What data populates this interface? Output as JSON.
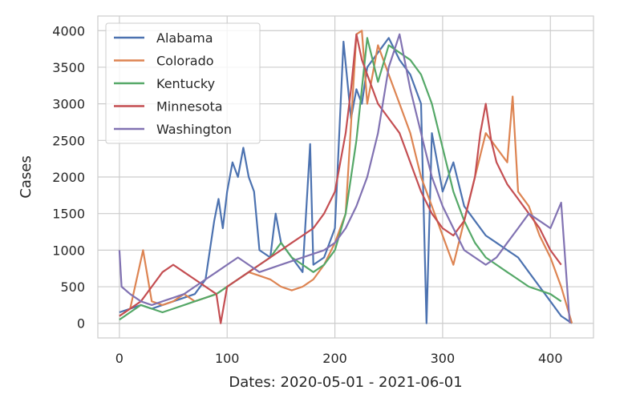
{
  "chart_data": {
    "type": "line",
    "title": "",
    "xlabel": "Dates: 2020-05-01 - 2021-06-01",
    "ylabel": "Cases",
    "xlim": [
      -20,
      440
    ],
    "ylim": [
      -200,
      4200
    ],
    "xticks": [
      0,
      100,
      200,
      300,
      400
    ],
    "yticks": [
      0,
      500,
      1000,
      1500,
      2000,
      2500,
      3000,
      3500,
      4000
    ],
    "grid": true,
    "legend_position": "top-left",
    "series": [
      {
        "name": "Alabama",
        "color": "#4c72b0",
        "x": [
          0,
          10,
          20,
          30,
          40,
          50,
          60,
          70,
          80,
          88,
          92,
          96,
          100,
          105,
          110,
          115,
          120,
          125,
          130,
          140,
          145,
          150,
          160,
          170,
          177,
          180,
          190,
          200,
          208,
          215,
          220,
          225,
          230,
          240,
          250,
          260,
          270,
          280,
          285,
          290,
          300,
          310,
          320,
          330,
          340,
          350,
          360,
          370,
          380,
          390,
          400,
          410,
          420
        ],
        "values": [
          150,
          200,
          250,
          200,
          250,
          300,
          350,
          400,
          600,
          1400,
          1700,
          1300,
          1800,
          2200,
          2000,
          2400,
          2000,
          1800,
          1000,
          900,
          1500,
          1100,
          900,
          700,
          2450,
          800,
          900,
          1300,
          3850,
          2800,
          3200,
          3000,
          3500,
          3700,
          3900,
          3600,
          3400,
          3000,
          0,
          2600,
          1800,
          2200,
          1600,
          1400,
          1200,
          1100,
          1000,
          900,
          700,
          500,
          300,
          100,
          0
        ]
      },
      {
        "name": "Colorado",
        "color": "#dd8452",
        "x": [
          0,
          10,
          22,
          30,
          40,
          50,
          60,
          70,
          80,
          90,
          100,
          110,
          120,
          130,
          140,
          150,
          160,
          170,
          180,
          190,
          200,
          210,
          220,
          225,
          230,
          240,
          250,
          260,
          270,
          280,
          290,
          300,
          310,
          320,
          330,
          340,
          350,
          360,
          365,
          370,
          380,
          390,
          400,
          410,
          420
        ],
        "values": [
          100,
          200,
          1000,
          300,
          250,
          300,
          400,
          300,
          350,
          400,
          500,
          600,
          700,
          650,
          600,
          500,
          450,
          500,
          600,
          800,
          1100,
          1500,
          3950,
          4000,
          3000,
          3800,
          3400,
          3000,
          2600,
          2000,
          1600,
          1200,
          800,
          1400,
          2000,
          2600,
          2400,
          2200,
          3100,
          1800,
          1600,
          1200,
          900,
          500,
          0
        ]
      },
      {
        "name": "Kentucky",
        "color": "#55a868",
        "x": [
          0,
          10,
          20,
          30,
          40,
          50,
          60,
          70,
          80,
          90,
          100,
          110,
          120,
          130,
          140,
          150,
          160,
          170,
          180,
          190,
          200,
          210,
          220,
          230,
          240,
          250,
          260,
          270,
          280,
          290,
          300,
          310,
          320,
          330,
          340,
          350,
          360,
          370,
          380,
          390,
          400,
          410
        ],
        "values": [
          50,
          150,
          250,
          200,
          150,
          200,
          250,
          300,
          350,
          400,
          500,
          600,
          700,
          800,
          900,
          1100,
          900,
          800,
          700,
          800,
          1000,
          1500,
          2500,
          3900,
          3300,
          3800,
          3700,
          3600,
          3400,
          3000,
          2400,
          1800,
          1400,
          1100,
          900,
          800,
          700,
          600,
          500,
          450,
          400,
          300
        ]
      },
      {
        "name": "Minnesota",
        "color": "#c44e52",
        "x": [
          0,
          10,
          20,
          30,
          40,
          50,
          60,
          70,
          80,
          90,
          94,
          100,
          110,
          120,
          130,
          140,
          150,
          160,
          170,
          180,
          190,
          200,
          210,
          215,
          220,
          225,
          230,
          240,
          250,
          260,
          270,
          280,
          290,
          300,
          310,
          320,
          330,
          335,
          340,
          345,
          350,
          360,
          370,
          380,
          390,
          400,
          410
        ],
        "values": [
          100,
          200,
          300,
          500,
          700,
          800,
          700,
          600,
          500,
          400,
          0,
          500,
          600,
          700,
          800,
          900,
          1000,
          1100,
          1200,
          1300,
          1500,
          1800,
          2600,
          3200,
          3950,
          3600,
          3400,
          3000,
          2800,
          2600,
          2200,
          1800,
          1500,
          1300,
          1200,
          1400,
          2000,
          2600,
          3000,
          2500,
          2200,
          1900,
          1700,
          1500,
          1300,
          1000,
          800
        ]
      },
      {
        "name": "Washington",
        "color": "#8172b2",
        "x": [
          0,
          2,
          10,
          20,
          30,
          40,
          50,
          60,
          70,
          80,
          90,
          100,
          110,
          120,
          130,
          140,
          150,
          160,
          170,
          180,
          190,
          200,
          210,
          220,
          230,
          240,
          250,
          260,
          270,
          280,
          290,
          300,
          310,
          320,
          330,
          340,
          350,
          360,
          370,
          380,
          390,
          400,
          410,
          418
        ],
        "values": [
          1000,
          500,
          400,
          300,
          250,
          300,
          350,
          400,
          500,
          600,
          700,
          800,
          900,
          800,
          700,
          750,
          800,
          850,
          900,
          950,
          1000,
          1100,
          1300,
          1600,
          2000,
          2600,
          3500,
          3950,
          3200,
          2600,
          2000,
          1600,
          1300,
          1000,
          900,
          800,
          900,
          1100,
          1300,
          1500,
          1400,
          1300,
          1650,
          0
        ]
      }
    ]
  }
}
